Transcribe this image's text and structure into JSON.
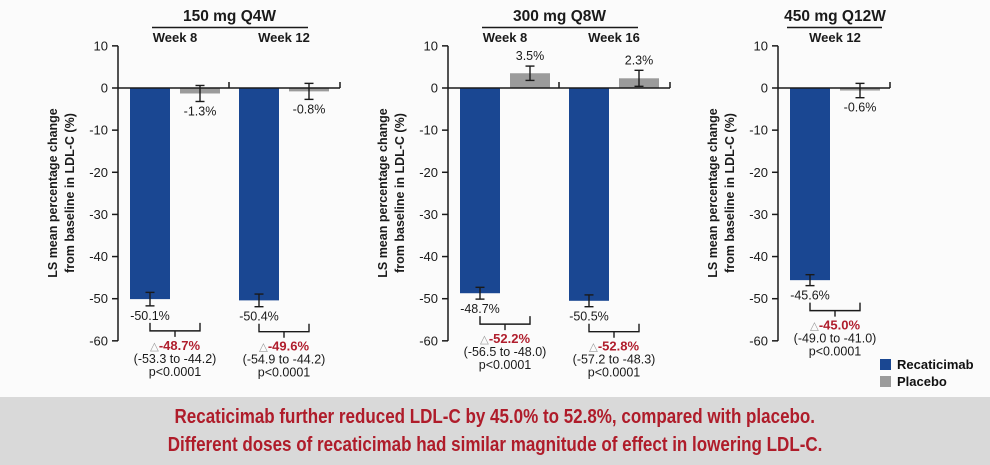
{
  "chart_data": {
    "type": "bar",
    "ylabel_line1": "LS mean percentage change",
    "ylabel_line2": "from baseline in LDL-C (%)",
    "ylim": [
      -60,
      10
    ],
    "yticks": [
      10,
      0,
      -10,
      -20,
      -30,
      -40,
      -50,
      -60
    ],
    "colors": {
      "recaticimab": "#1A4792",
      "placebo": "#9B9B9B",
      "delta_red": "#B01E2D",
      "axis_black": "#1A1A1A",
      "triangle_gray": "#9A9A9A"
    },
    "delta_symbol": "△",
    "legend": [
      {
        "label": "Recaticimab",
        "color": "#1A4792"
      },
      {
        "label": "Placebo",
        "color": "#9B9B9B"
      }
    ],
    "panels": [
      {
        "title": "150 mg Q4W",
        "groups": [
          {
            "week": "Week 8",
            "recaticimab": {
              "value": -50.1,
              "label": "-50.1%",
              "err": 1.6
            },
            "placebo": {
              "value": -1.3,
              "label": "-1.3%",
              "err": 1.9
            },
            "diff": {
              "delta": "-48.7%",
              "ci": "(-53.3 to -44.2)",
              "p": "p<0.0001"
            }
          },
          {
            "week": "Week 12",
            "recaticimab": {
              "value": -50.4,
              "label": "-50.4%",
              "err": 1.5
            },
            "placebo": {
              "value": -0.8,
              "label": "-0.8%",
              "err": 1.9
            },
            "diff": {
              "delta": "-49.6%",
              "ci": "(-54.9 to -44.2)",
              "p": "p<0.0001"
            }
          }
        ]
      },
      {
        "title": "300 mg Q8W",
        "groups": [
          {
            "week": "Week 8",
            "recaticimab": {
              "value": -48.7,
              "label": "-48.7%",
              "err": 1.4
            },
            "placebo": {
              "value": 3.5,
              "label": "3.5%",
              "err": 1.7
            },
            "diff": {
              "delta": "-52.2%",
              "ci": "(-56.5 to -48.0)",
              "p": "p<0.0001"
            }
          },
          {
            "week": "Week 16",
            "recaticimab": {
              "value": -50.5,
              "label": "-50.5%",
              "err": 1.4
            },
            "placebo": {
              "value": 2.3,
              "label": "2.3%",
              "err": 1.9
            },
            "diff": {
              "delta": "-52.8%",
              "ci": "(-57.2 to -48.3)",
              "p": "p<0.0001"
            }
          }
        ]
      },
      {
        "title": "450 mg Q12W",
        "groups": [
          {
            "week": "Week 12",
            "recaticimab": {
              "value": -45.6,
              "label": "-45.6%",
              "err": 1.3
            },
            "placebo": {
              "value": -0.6,
              "label": "-0.6%",
              "err": 1.7
            },
            "diff": {
              "delta": "-45.0%",
              "ci": "(-49.0 to -41.0)",
              "p": "p<0.0001"
            }
          }
        ]
      }
    ]
  },
  "banner": {
    "line1": "Recaticimab further reduced LDL-C by 45.0% to 52.8%, compared with placebo.",
    "line2": "Different doses of recaticimab had similar magnitude of effect in lowering LDL-C.",
    "bg": "#D9D9D9",
    "text_color": "#AF1C2A"
  }
}
